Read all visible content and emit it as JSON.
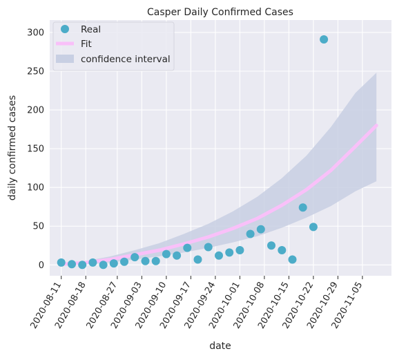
{
  "chart_data": {
    "type": "scatter",
    "title": "Casper Daily Confirmed Cases",
    "xlabel": "date",
    "ylabel": "daily confirmed cases",
    "x_tick_labels": [
      "2020-08-11",
      "2020-08-18",
      "2020-08-27",
      "2020-09-03",
      "2020-09-10",
      "2020-09-17",
      "2020-09-24",
      "2020-10-01",
      "2020-10-08",
      "2020-10-15",
      "2020-10-22",
      "2020-10-29",
      "2020-11-05"
    ],
    "y_ticks": [
      0,
      50,
      100,
      150,
      200,
      250,
      300
    ],
    "ylim": [
      -14,
      316
    ],
    "grid": true,
    "legend_position": "top-left",
    "colors": {
      "real": "#4cacc8",
      "fit": "#f9c0f9",
      "ci": "#c8cfe3",
      "background": "#eaeaf2",
      "grid": "#ffffff"
    },
    "legend": [
      {
        "label": "Real",
        "kind": "marker"
      },
      {
        "label": "Fit",
        "kind": "line"
      },
      {
        "label": "confidence interval",
        "kind": "patch"
      }
    ],
    "series": [
      {
        "kind": "points",
        "dates": [
          "2020-08-11",
          "2020-08-14",
          "2020-08-17",
          "2020-08-20",
          "2020-08-23",
          "2020-08-26",
          "2020-08-29",
          "2020-09-01",
          "2020-09-04",
          "2020-09-07",
          "2020-09-10",
          "2020-09-13",
          "2020-09-16",
          "2020-09-19",
          "2020-09-22",
          "2020-09-25",
          "2020-09-28",
          "2020-10-01",
          "2020-10-04",
          "2020-10-07",
          "2020-10-10",
          "2020-10-13",
          "2020-10-16",
          "2020-10-19",
          "2020-10-22",
          "2020-10-25",
          "2020-10-28",
          "2020-10-31",
          "2020-11-03",
          "2020-11-06",
          "2020-11-09"
        ],
        "values": [
          3,
          1,
          0,
          3,
          0,
          2,
          4,
          10,
          5,
          5,
          14,
          12,
          22,
          7,
          23,
          12,
          16,
          19,
          40,
          46,
          25,
          19,
          7,
          74,
          49,
          291,
          null,
          null,
          null,
          null,
          null
        ]
      },
      {
        "kind": "fit",
        "dates": [
          "2020-08-11",
          "2020-08-18",
          "2020-08-25",
          "2020-09-01",
          "2020-09-08",
          "2020-09-15",
          "2020-09-22",
          "2020-09-29",
          "2020-10-06",
          "2020-10-13",
          "2020-10-20",
          "2020-10-27",
          "2020-11-03",
          "2020-11-09"
        ],
        "values": [
          1,
          3,
          7,
          13,
          19,
          27,
          36,
          47,
          60,
          77,
          97,
          122,
          153,
          180
        ],
        "ci_lower": [
          0,
          1,
          3,
          7,
          11,
          16,
          22,
          29,
          37,
          48,
          61,
          76,
          95,
          108
        ],
        "ci_upper": [
          2,
          5,
          11,
          19,
          28,
          40,
          53,
          69,
          88,
          112,
          141,
          178,
          222,
          248
        ]
      }
    ]
  }
}
